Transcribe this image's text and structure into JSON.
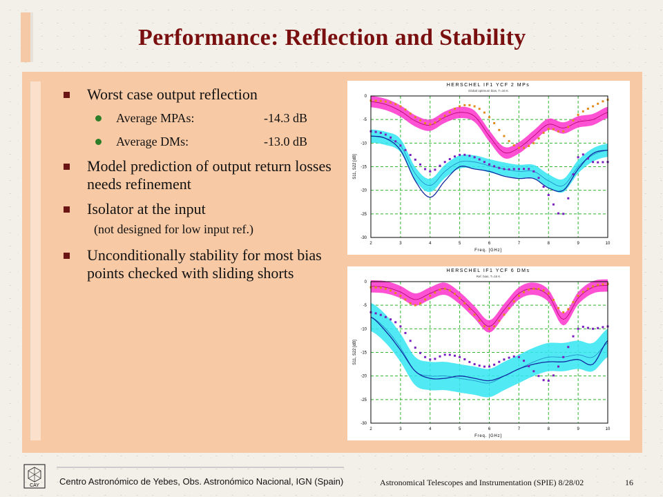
{
  "title": "Performance:  Reflection and Stability",
  "bullets": [
    {
      "text": "Worst case output reflection"
    },
    {
      "text": "Model prediction of output return losses needs refinement"
    },
    {
      "text": "Isolator at the input"
    },
    {
      "text": "Unconditionally stability for most bias points checked with sliding shorts"
    }
  ],
  "sub_items": [
    {
      "label": "Average MPAs:",
      "value": "-14.3 dB"
    },
    {
      "label": "Average DMs:",
      "value": "-13.0 dB"
    }
  ],
  "isolator_note": "(not designed for low input ref.)",
  "footer": {
    "left": "Centro Astronómico de Yebes, Obs. Astronómico Nacional, IGN (Spain)",
    "right": "Astronomical Telescopes and Instrumentation (SPIE)  8/28/02",
    "page": "16",
    "logo_text": "CAY"
  },
  "colors": {
    "title": "#7a0f0f",
    "panel": "#f7c9a5",
    "pink_band": "#ff33cc",
    "cyan_band": "#33e5f2",
    "orange_dots": "#e08a1e",
    "purple_dots": "#7a1fbf",
    "blue_line": "#102aa0"
  },
  "chart_data": [
    {
      "type": "line",
      "title": "HERSCHEL IF1 YCF 2 MPs",
      "subtitle": "Global optimum bias, T=16 K",
      "xlabel": "Freq. [GHz]",
      "ylabel": "S11, S22 [dB]",
      "xlim": [
        2,
        10
      ],
      "ylim": [
        -30,
        0
      ],
      "xticks": [
        2,
        3,
        4,
        5,
        6,
        7,
        8,
        9,
        10
      ],
      "yticks": [
        0,
        -5,
        -10,
        -15,
        -20,
        -25,
        -30
      ],
      "grid": true,
      "x": [
        2,
        2.5,
        3,
        3.5,
        4,
        4.5,
        5,
        5.5,
        6,
        6.5,
        7,
        7.5,
        8,
        8.5,
        9,
        9.5,
        10
      ],
      "series": [
        {
          "style": "pink-band",
          "mean": [
            -1.2,
            -1.8,
            -3.2,
            -5.3,
            -6.2,
            -4.5,
            -3.5,
            -4.3,
            -8.5,
            -12,
            -11,
            -8.5,
            -6,
            -6.8,
            -5.5,
            -5,
            -3.5
          ],
          "spread": 1.2
        },
        {
          "style": "orange-dots",
          "values": [
            -1,
            -1.2,
            -2.2,
            -4.5,
            -6,
            -4.2,
            -2.2,
            -2.2,
            -4.5,
            -8.5,
            -11,
            -10,
            -7,
            -7.5,
            -4,
            -2.2,
            -0.8
          ]
        },
        {
          "style": "cyan-band",
          "mean": [
            -8.5,
            -9,
            -10.5,
            -16.5,
            -19,
            -16,
            -14,
            -14,
            -14.8,
            -15.5,
            -16,
            -16,
            -18,
            -19,
            -15,
            -12.5,
            -11.5
          ],
          "spread": 1.4
        },
        {
          "style": "blue-line",
          "values": [
            -8.5,
            -9,
            -11.5,
            -18,
            -21.5,
            -18,
            -15,
            -15.5,
            -16,
            -17,
            -17.5,
            -17.5,
            -19.5,
            -20,
            -15.5,
            -12.2,
            -11.5
          ]
        },
        {
          "style": "purple-dots",
          "values": [
            -7.5,
            -8.2,
            -10.5,
            -13.5,
            -16,
            -14,
            -12.5,
            -13,
            -14.5,
            -15.5,
            -15.5,
            -16,
            -21,
            -25,
            -13,
            -14,
            -14
          ]
        }
      ]
    },
    {
      "type": "line",
      "title": "HERSCHEL IF1 YCF 6 DMs",
      "subtitle": "Ref. bias, T=16 K",
      "xlabel": "Freq. [GHz]",
      "ylabel": "S11, S22 [dB]",
      "xlim": [
        2,
        10
      ],
      "ylim": [
        -30,
        0
      ],
      "xticks": [
        2,
        3,
        4,
        5,
        6,
        7,
        8,
        9,
        10
      ],
      "yticks": [
        0,
        -5,
        -10,
        -15,
        -20,
        -25,
        -30
      ],
      "grid": true,
      "x": [
        2,
        2.5,
        3,
        3.5,
        4,
        4.5,
        5,
        5.5,
        6,
        6.5,
        7,
        7.5,
        8,
        8.5,
        9,
        9.5,
        10
      ],
      "series": [
        {
          "style": "pink-band",
          "mean": [
            -1,
            -1.2,
            -2.2,
            -3.8,
            -2.5,
            -1.5,
            -3.5,
            -6.5,
            -9.5,
            -6,
            -2.5,
            -1.5,
            -3,
            -8,
            -3.5,
            -1.2,
            -0.8
          ],
          "spread": 1.3
        },
        {
          "style": "orange-dots",
          "values": [
            -1.2,
            -1.5,
            -3,
            -5,
            -3,
            -1.5,
            -3.5,
            -7,
            -10,
            -7,
            -3,
            -1.5,
            -2.5,
            -6.5,
            -3,
            -1,
            -0.5
          ]
        },
        {
          "style": "cyan-band",
          "mean": [
            -7.5,
            -10,
            -14,
            -19,
            -20,
            -20,
            -20.5,
            -21,
            -21.5,
            -20,
            -18.5,
            -17,
            -16,
            -16,
            -15.5,
            -16,
            -13
          ],
          "spread": 3
        },
        {
          "style": "blue-line",
          "values": [
            -7.5,
            -10.5,
            -14.5,
            -19,
            -20.5,
            -20.5,
            -20,
            -20.5,
            -21,
            -20,
            -18.5,
            -17.5,
            -17,
            -17,
            -16.5,
            -17.5,
            -12.5
          ]
        },
        {
          "style": "purple-dots",
          "values": [
            -6.5,
            -7.5,
            -9.5,
            -14,
            -16.5,
            -15.5,
            -16,
            -17.5,
            -18,
            -16.5,
            -16,
            -19,
            -21,
            -16,
            -10,
            -10,
            -9.5
          ]
        }
      ]
    }
  ]
}
